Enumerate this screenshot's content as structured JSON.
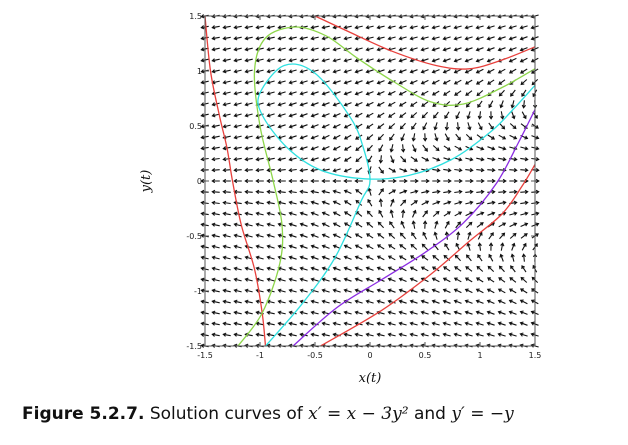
{
  "chart_data": {
    "type": "vector-field",
    "xlabel": "x(t)",
    "ylabel": "y(t)",
    "xlim": [
      -1.5,
      1.5
    ],
    "ylim": [
      -1.5,
      1.5
    ],
    "x_ticks": [
      "-1.5",
      "-1",
      "-0.5",
      "0",
      "0.5",
      "1",
      "1.5"
    ],
    "y_ticks": [
      "-1.5",
      "-1",
      "-0.5",
      "0",
      "0.5",
      "1",
      "1.5"
    ],
    "field": {
      "dx": "x - 3*y^2",
      "dy": "-y"
    },
    "curves": [
      {
        "color": "#e8403c",
        "points": [
          [
            -0.95,
            -1.5
          ],
          [
            -0.98,
            -1.2
          ],
          [
            -1.05,
            -0.8
          ],
          [
            -1.17,
            -0.4
          ],
          [
            -1.25,
            0
          ],
          [
            -1.3,
            0.3
          ],
          [
            -1.37,
            0.6
          ],
          [
            -1.45,
            1.0
          ],
          [
            -1.5,
            1.5
          ]
        ]
      },
      {
        "color": "#e8403c",
        "points": [
          [
            -0.5,
            1.5
          ],
          [
            -0.2,
            1.36
          ],
          [
            0.2,
            1.18
          ],
          [
            0.6,
            1.05
          ],
          [
            0.9,
            1.02
          ],
          [
            1.2,
            1.1
          ],
          [
            1.5,
            1.22
          ]
        ]
      },
      {
        "color": "#e8403c",
        "points": [
          [
            -0.45,
            -1.5
          ],
          [
            0.1,
            -1.18
          ],
          [
            0.55,
            -0.85
          ],
          [
            0.9,
            -0.55
          ],
          [
            1.2,
            -0.3
          ],
          [
            1.38,
            -0.05
          ],
          [
            1.5,
            0.15
          ]
        ]
      },
      {
        "color": "#8dd64a",
        "points": [
          [
            -1.2,
            -1.5
          ],
          [
            -0.98,
            -1.2
          ],
          [
            -0.82,
            -0.75
          ],
          [
            -0.8,
            -0.4
          ],
          [
            -0.88,
            0
          ],
          [
            -1.0,
            0.5
          ],
          [
            -1.05,
            1.0
          ],
          [
            -0.95,
            1.3
          ],
          [
            -0.68,
            1.4
          ],
          [
            -0.4,
            1.32
          ],
          [
            -0.12,
            1.12
          ],
          [
            0.22,
            0.9
          ],
          [
            0.55,
            0.72
          ],
          [
            0.85,
            0.7
          ],
          [
            1.2,
            0.85
          ],
          [
            1.5,
            1.02
          ]
        ]
      },
      {
        "color": "#2ee0e0",
        "points": [
          [
            -0.95,
            -1.5
          ],
          [
            -0.62,
            -1.12
          ],
          [
            -0.32,
            -0.7
          ],
          [
            -0.08,
            -0.18
          ],
          [
            0.0,
            0.0
          ],
          [
            -0.06,
            0.3
          ],
          [
            -0.18,
            0.58
          ],
          [
            -0.5,
            0.98
          ],
          [
            -0.78,
            1.05
          ],
          [
            -1.0,
            0.8
          ],
          [
            -0.98,
            0.6
          ],
          [
            -0.75,
            0.3
          ],
          [
            -0.45,
            0.1
          ],
          [
            -0.05,
            0.02
          ],
          [
            0.35,
            0.05
          ],
          [
            0.75,
            0.2
          ],
          [
            1.1,
            0.45
          ],
          [
            1.3,
            0.65
          ],
          [
            1.5,
            0.87
          ]
        ]
      },
      {
        "color": "#8a2be2",
        "points": [
          [
            -0.7,
            -1.5
          ],
          [
            -0.3,
            -1.15
          ],
          [
            0.1,
            -0.9
          ],
          [
            0.5,
            -0.65
          ],
          [
            0.85,
            -0.38
          ],
          [
            1.15,
            -0.02
          ],
          [
            1.35,
            0.35
          ],
          [
            1.5,
            0.65
          ]
        ]
      }
    ]
  },
  "caption": {
    "label": "Figure 5.2.7.",
    "text": "Solution curves of",
    "eq1": "x′ = x − 3y² ",
    "and": "and",
    "eq2": "y′ = −y"
  }
}
